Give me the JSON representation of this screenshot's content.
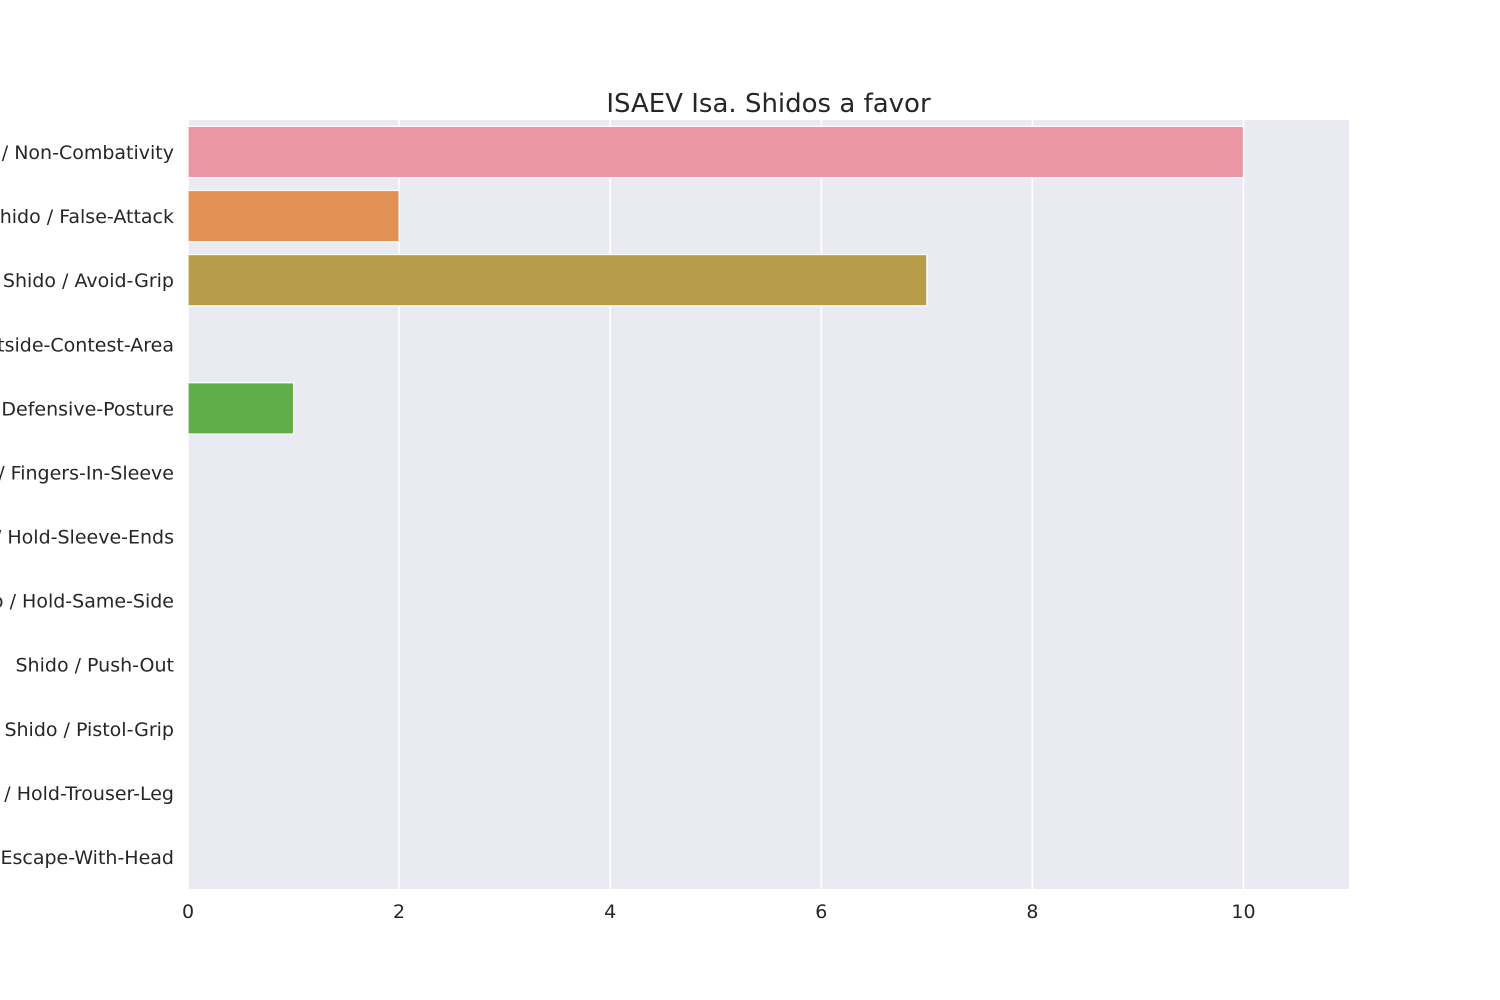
{
  "chart_data": {
    "type": "bar",
    "orientation": "horizontal",
    "title": "ISAEV Isa. Shidos a favor",
    "xlabel": "",
    "ylabel": "",
    "xlim": [
      0,
      11
    ],
    "x_ticks": [
      0,
      2,
      4,
      6,
      8,
      10
    ],
    "x_tick_labels": [
      "0",
      "2",
      "4",
      "6",
      "8",
      "10"
    ],
    "grid": true,
    "categories": [
      "Shido / Non-Combativity",
      "Shido / False-Attack",
      "Shido / Avoid-Grip",
      "Shido / Outside-Contest-Area",
      "Shido / Defensive-Posture",
      "Shido / Fingers-In-Sleeve",
      "Shido / Hold-Sleeve-Ends",
      "Shido / Hold-Same-Side",
      "Shido / Push-Out",
      "Shido / Pistol-Grip",
      "Shido / Hold-Trouser-Leg",
      "Shido / Escape-With-Head"
    ],
    "values": [
      10,
      2,
      7,
      0,
      1,
      0,
      0,
      0,
      0,
      0,
      0,
      0
    ],
    "colors": [
      "#ea96a3",
      "#e19153",
      "#b79c4a",
      "#9fa548",
      "#5fae47",
      "#51b07e",
      "#54ac9f",
      "#56a8b6",
      "#5ba4d7",
      "#a39ceb",
      "#de86e6",
      "#ea8dc9"
    ],
    "background_color": "#eaeaf2",
    "grid_color": "#ffffff"
  }
}
